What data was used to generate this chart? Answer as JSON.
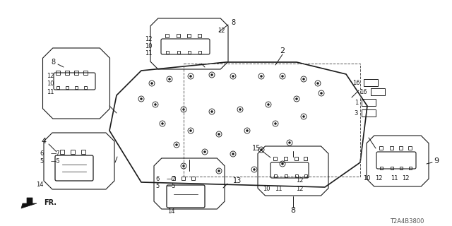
{
  "bg_color": "#ffffff",
  "line_color": "#1a1a1a",
  "diagram_code": "T2A4B3800",
  "fig_width": 6.4,
  "fig_height": 3.2,
  "dpi": 100
}
